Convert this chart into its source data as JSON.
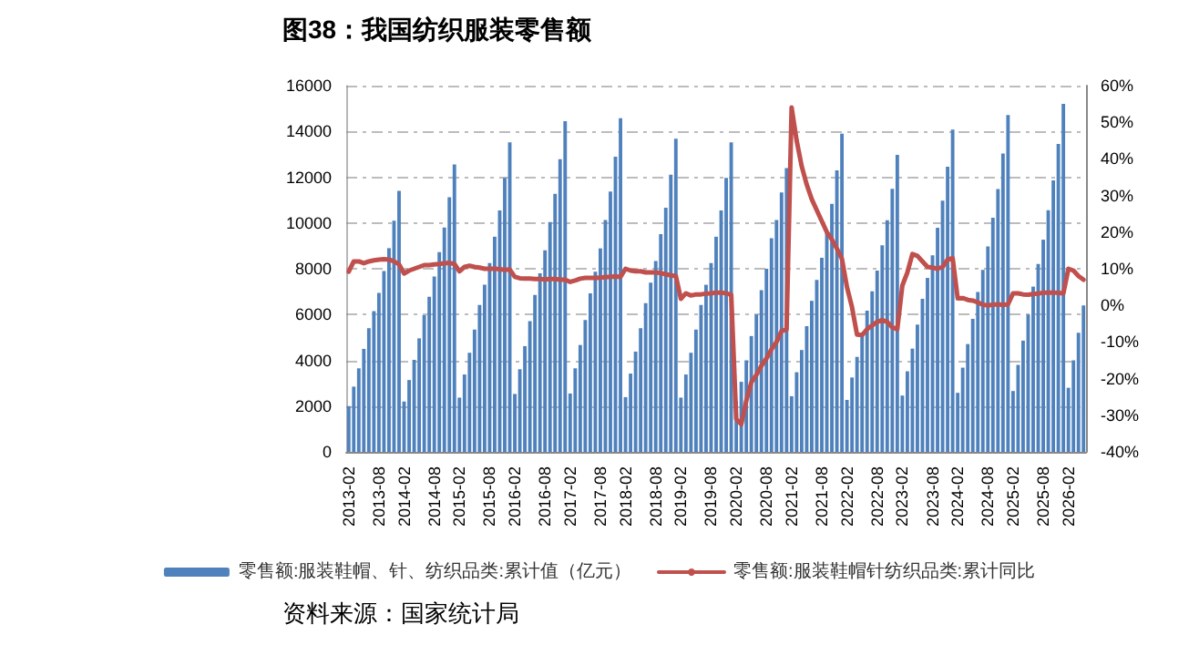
{
  "chart_data": {
    "type": "bar",
    "title": "图38：我国纺织服装零售额",
    "annotations": [
      "资料来源：国家统计局"
    ],
    "categories": [
      "2013-02",
      null,
      null,
      null,
      null,
      null,
      "2013-08",
      null,
      null,
      null,
      null,
      "2014-02",
      null,
      null,
      null,
      null,
      null,
      "2014-08",
      null,
      null,
      null,
      null,
      "2015-02",
      null,
      null,
      null,
      null,
      null,
      "2015-08",
      null,
      null,
      null,
      null,
      "2016-02",
      null,
      null,
      null,
      null,
      null,
      "2016-08",
      null,
      null,
      null,
      null,
      "2017-02",
      null,
      null,
      null,
      null,
      null,
      "2017-08",
      null,
      null,
      null,
      null,
      "2018-02",
      null,
      null,
      null,
      null,
      null,
      "2018-08",
      null,
      null,
      null,
      null,
      "2019-02",
      null,
      null,
      null,
      null,
      null,
      "2019-08",
      null,
      null,
      null,
      null,
      "2020-02",
      null,
      null,
      null,
      null,
      null,
      "2020-08",
      null,
      null,
      null,
      null,
      "2021-02",
      null,
      null,
      null,
      null,
      null,
      "2021-08",
      null,
      null,
      null,
      null,
      "2022-02",
      null,
      null,
      null,
      null,
      null,
      "2022-08",
      null,
      null,
      null,
      null,
      "2023-02",
      null,
      null,
      null,
      null,
      null,
      "2023-08",
      null,
      null,
      null,
      null,
      "2024-02",
      null,
      null,
      null,
      null,
      null,
      "2024-08",
      null,
      null,
      null,
      null,
      "2025-02",
      null,
      null,
      null,
      null,
      null,
      "2025-08",
      null,
      null,
      null,
      null,
      "2026-02",
      null,
      null,
      null
    ],
    "series": [
      {
        "name": "零售额:服装鞋帽、针、纺织品类:累计值（亿元）",
        "color": "#4f81bd",
        "values": [
          2000,
          2850,
          3650,
          4500,
          5400,
          6150,
          6950,
          7900,
          8900,
          10100,
          11400,
          2200,
          3140,
          4020,
          4960,
          5970,
          6780,
          7660,
          8730,
          9800,
          11120,
          12560,
          2370,
          3380,
          4330,
          5340,
          6420,
          7300,
          8250,
          9400,
          10550,
          11970,
          13520,
          2530,
          3610,
          4620,
          5710,
          6860,
          7800,
          8810,
          10040,
          11270,
          12790,
          14450,
          2550,
          3650,
          4670,
          5760,
          6930,
          7870,
          8890,
          10130,
          11370,
          12900,
          14580,
          2390,
          3420,
          4380,
          5400,
          6500,
          7390,
          8340,
          9510,
          10670,
          12110,
          13680,
          2370,
          3380,
          4330,
          5340,
          6420,
          7300,
          8250,
          9400,
          10550,
          11970,
          13520,
          2210,
          3060,
          4000,
          5060,
          6000,
          7060,
          8000,
          9330,
          10130,
          11330,
          12400,
          2430,
          3480,
          4450,
          5490,
          6600,
          7510,
          8480,
          9660,
          10840,
          12300,
          13900,
          2270,
          3250,
          4150,
          5130,
          6170,
          7010,
          7920,
          9020,
          10120,
          11490,
          12980,
          2460,
          3520,
          4510,
          5560,
          6690,
          7600,
          8590,
          9790,
          10980,
          12460,
          14080,
          2580,
          3680,
          4710,
          5810,
          6990,
          7950,
          8980,
          10230,
          11480,
          13030,
          14720,
          2660,
          3800,
          4860,
          6000,
          7220,
          8210,
          9270,
          10560,
          11860,
          13450,
          15200,
          2800,
          4000,
          5200,
          6400
        ]
      },
      {
        "name": "零售额:服装鞋帽针纺织品类:累计同比",
        "type": "line",
        "axis": "y2",
        "color": "#c0504d",
        "values": [
          9.2,
          12,
          12,
          11.5,
          12,
          12.3,
          12.5,
          12.6,
          12.5,
          12,
          11.2,
          8.7,
          9.5,
          10,
          10.5,
          11,
          11,
          11.2,
          11.3,
          11.5,
          11.6,
          11.3,
          9.3,
          10.5,
          10.8,
          10.5,
          10.3,
          10,
          10,
          10,
          9.9,
          9.7,
          9.8,
          7.8,
          7.4,
          7.3,
          7.3,
          7.2,
          7.2,
          7.1,
          7.2,
          7.2,
          7,
          7,
          6.4,
          6.8,
          7.3,
          7.5,
          7.5,
          7.5,
          7.6,
          7.7,
          7.8,
          7.9,
          7.8,
          10,
          9.5,
          9.3,
          9.3,
          9,
          9,
          9,
          8.8,
          8.5,
          8.2,
          8,
          1.8,
          3.3,
          2.7,
          3,
          3,
          3.2,
          3.3,
          3.5,
          3.5,
          3.3,
          2.9,
          -31,
          -32.5,
          -26,
          -21,
          -19,
          -16.5,
          -14.5,
          -12,
          -10,
          -7,
          -6.6,
          54,
          45,
          38,
          33,
          29,
          26,
          23,
          20,
          18,
          15.5,
          12.7,
          5,
          -0.5,
          -8,
          -8.1,
          -6.5,
          -5.5,
          -4.5,
          -4,
          -4.5,
          -6,
          -6.5,
          5.4,
          9,
          14,
          13.5,
          12,
          10.5,
          10.3,
          10,
          10.5,
          12.5,
          12.9,
          1.9,
          2,
          1.5,
          1.3,
          0.8,
          0.2,
          0,
          0.2,
          0.3,
          0.1,
          0.3,
          3.3,
          3.3,
          3,
          2.9,
          3.1,
          3.2,
          3.5,
          3.5,
          3.5,
          3.4,
          3.3,
          10,
          9.5,
          8,
          7
        ]
      }
    ],
    "ylim": [
      0,
      16000
    ],
    "yticks": [
      0,
      2000,
      4000,
      6000,
      8000,
      10000,
      12000,
      14000,
      16000
    ],
    "y2lim": [
      -40,
      60
    ],
    "y2ticks": [
      {
        "value": -40,
        "label": "-40%"
      },
      {
        "value": -30,
        "label": "-30%"
      },
      {
        "value": -20,
        "label": "-20%"
      },
      {
        "value": -10,
        "label": "-10%"
      },
      {
        "value": 0,
        "label": "0%"
      },
      {
        "value": 10,
        "label": "10%"
      },
      {
        "value": 20,
        "label": "20%"
      },
      {
        "value": 30,
        "label": "30%"
      },
      {
        "value": 40,
        "label": "40%"
      },
      {
        "value": 50,
        "label": "50%"
      },
      {
        "value": 60,
        "label": "60%"
      }
    ],
    "grid": "y",
    "legend": "bottom",
    "marker": "none",
    "line_style": "solid"
  }
}
